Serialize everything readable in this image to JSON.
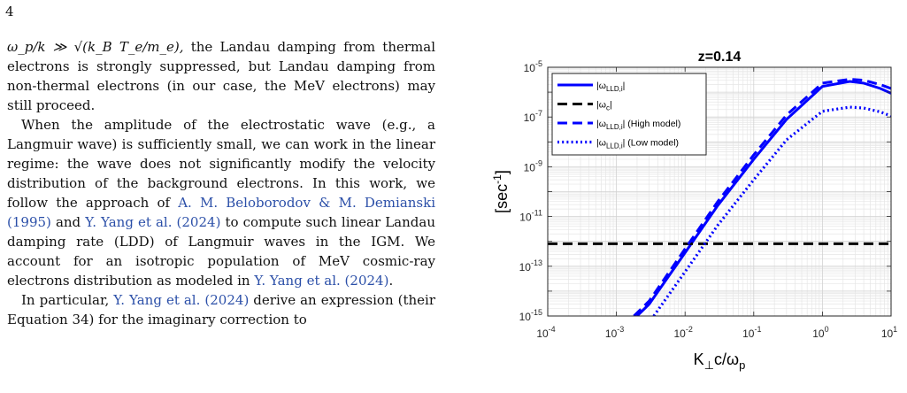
{
  "page_number": "4",
  "body": {
    "p1": {
      "math": "ω_p/k ≫ √(k_B T_e/m_e),",
      "rest": " the Landau damping from thermal electrons is strongly suppressed, but Landau damping from non-thermal electrons (in our case, the MeV electrons) may still proceed."
    },
    "p2": {
      "a": "When the amplitude of the electrostatic wave (e.g., a Langmuir wave) is sufficiently small, we can work in the linear regime: the wave does not significantly modify the velocity distribution of the background electrons. In this work, we follow the approach of ",
      "cite1": "A. M. Beloborodov & M. Demianski",
      "cite1_year": "1995",
      "b": " and ",
      "cite2": "Y. Yang et al.",
      "cite2_year": "2024",
      "c": " to compute such linear Landau damping rate (LDD) of Langmuir waves in the IGM. We account for an isotropic population of MeV cosmic-ray electrons distribution as modeled in ",
      "cite3": "Y. Yang et al.",
      "cite3_year": "2024",
      "d": "."
    },
    "p3": {
      "cite": "Y. Yang et al.",
      "cite_year": "2024",
      "rest": " derive an expression (their Equation 34) for the imaginary correction to",
      "lead": "In particular, "
    }
  },
  "chart_data": {
    "type": "line",
    "title": "z=0.14",
    "xlabel": "K⊥c/ωp",
    "ylabel": "[sec⁻¹]",
    "xscale": "log",
    "yscale": "log",
    "xlim": [
      0.0001,
      10
    ],
    "ylim": [
      1e-15,
      1e-05
    ],
    "x_ticks": [
      "10-4",
      "10-3",
      "10-2",
      "10-1",
      "100",
      "101"
    ],
    "y_ticks": [
      "10-15",
      "10-13",
      "10-11",
      "10-9",
      "10-7",
      "10-5"
    ],
    "grid": true,
    "legend_position": "top-left",
    "series": [
      {
        "name": "|ωLLD,i|",
        "style": "solid",
        "color": "#0000ff",
        "x": [
          0.002,
          0.003,
          0.01,
          0.03,
          0.1,
          0.3,
          1,
          2.5,
          4,
          7,
          10
        ],
        "y": [
          1e-15,
          3e-15,
          3.5e-13,
          2.8e-11,
          2e-09,
          8e-08,
          1.7e-06,
          2.7e-06,
          2.3e-06,
          1.4e-06,
          9e-07
        ]
      },
      {
        "name": "|ωc|",
        "style": "dashed",
        "color": "#000000",
        "x": [
          0.0001,
          10
        ],
        "y": [
          8e-13,
          8e-13
        ]
      },
      {
        "name": "|ωLLD,i| (High model)",
        "style": "dashed",
        "color": "#0000ff",
        "x": [
          0.0018,
          0.003,
          0.01,
          0.03,
          0.1,
          0.3,
          1,
          2.5,
          4,
          7,
          10
        ],
        "y": [
          1e-15,
          4e-15,
          5e-13,
          4e-11,
          3e-09,
          1.2e-07,
          2.3e-06,
          3.3e-06,
          3e-06,
          2e-06,
          1.4e-06
        ]
      },
      {
        "name": "|ωLLD,i| (Low model)",
        "style": "dotted",
        "color": "#0000ff",
        "x": [
          0.0035,
          0.01,
          0.03,
          0.1,
          0.3,
          1,
          2.5,
          4,
          7,
          10
        ],
        "y": [
          1e-15,
          6e-14,
          4.5e-12,
          3e-10,
          1.2e-08,
          1.7e-07,
          2.5e-07,
          2.3e-07,
          1.6e-07,
          1.1e-07
        ]
      }
    ]
  }
}
